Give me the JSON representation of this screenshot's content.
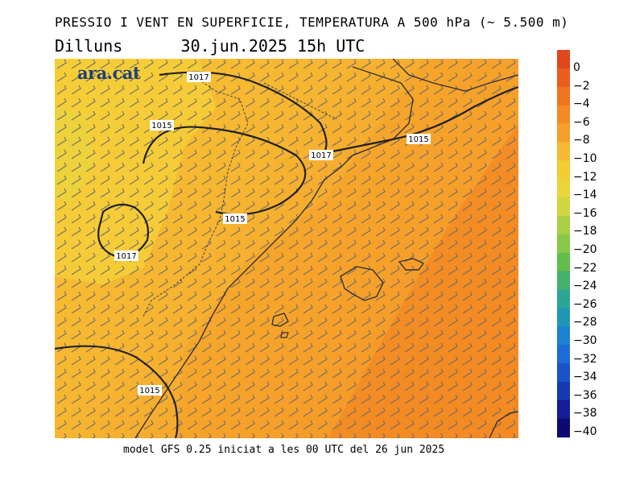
{
  "header": {
    "title": "PRESSIO I VENT EN SUPERFICIE, TEMPERATURA A 500 hPa (~ 5.500 m)",
    "day": "Dilluns",
    "datetime": "30.jun.2025 15h UTC"
  },
  "logo": {
    "text": "ara.cat"
  },
  "footer": {
    "model_info": "model GFS 0.25 iniciat a les 00 UTC del 26 jun 2025"
  },
  "map": {
    "isobar_labels": [
      "1017",
      "1015",
      "1017",
      "1015",
      "1015",
      "1017",
      "1015"
    ]
  },
  "colorbar": {
    "labels": [
      "0",
      "−2",
      "−4",
      "−6",
      "−8",
      "−10",
      "−12",
      "−14",
      "−16",
      "−18",
      "−20",
      "−22",
      "−24",
      "−26",
      "−28",
      "−30",
      "−32",
      "−34",
      "−36",
      "−38",
      "−40"
    ],
    "colors": [
      "#e0471c",
      "#ea5d1d",
      "#f0741e",
      "#f38a23",
      "#f5a02a",
      "#f7b933",
      "#f3cc33",
      "#e9d53a",
      "#cfd640",
      "#aacf45",
      "#88c849",
      "#62bd4c",
      "#46b06c",
      "#2ca595",
      "#1f97b4",
      "#1c82d0",
      "#1c6bd8",
      "#1a53c9",
      "#1539b0",
      "#121d96",
      "#0c0a72"
    ]
  }
}
